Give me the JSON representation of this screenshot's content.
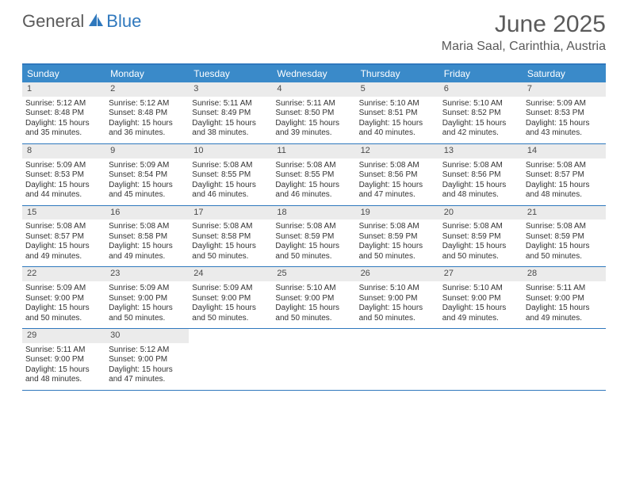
{
  "brand": {
    "part1": "General",
    "part2": "Blue"
  },
  "title": "June 2025",
  "location": "Maria Saal, Carinthia, Austria",
  "colors": {
    "header_bar": "#3a8ac9",
    "border": "#2f78bd",
    "daynum_bg": "#ebebeb",
    "text": "#333333",
    "title_text": "#5a5a5a"
  },
  "weekdays": [
    "Sunday",
    "Monday",
    "Tuesday",
    "Wednesday",
    "Thursday",
    "Friday",
    "Saturday"
  ],
  "weeks": [
    [
      {
        "n": "1",
        "sr": "5:12 AM",
        "ss": "8:48 PM",
        "dl": "15 hours and 35 minutes."
      },
      {
        "n": "2",
        "sr": "5:12 AM",
        "ss": "8:48 PM",
        "dl": "15 hours and 36 minutes."
      },
      {
        "n": "3",
        "sr": "5:11 AM",
        "ss": "8:49 PM",
        "dl": "15 hours and 38 minutes."
      },
      {
        "n": "4",
        "sr": "5:11 AM",
        "ss": "8:50 PM",
        "dl": "15 hours and 39 minutes."
      },
      {
        "n": "5",
        "sr": "5:10 AM",
        "ss": "8:51 PM",
        "dl": "15 hours and 40 minutes."
      },
      {
        "n": "6",
        "sr": "5:10 AM",
        "ss": "8:52 PM",
        "dl": "15 hours and 42 minutes."
      },
      {
        "n": "7",
        "sr": "5:09 AM",
        "ss": "8:53 PM",
        "dl": "15 hours and 43 minutes."
      }
    ],
    [
      {
        "n": "8",
        "sr": "5:09 AM",
        "ss": "8:53 PM",
        "dl": "15 hours and 44 minutes."
      },
      {
        "n": "9",
        "sr": "5:09 AM",
        "ss": "8:54 PM",
        "dl": "15 hours and 45 minutes."
      },
      {
        "n": "10",
        "sr": "5:08 AM",
        "ss": "8:55 PM",
        "dl": "15 hours and 46 minutes."
      },
      {
        "n": "11",
        "sr": "5:08 AM",
        "ss": "8:55 PM",
        "dl": "15 hours and 46 minutes."
      },
      {
        "n": "12",
        "sr": "5:08 AM",
        "ss": "8:56 PM",
        "dl": "15 hours and 47 minutes."
      },
      {
        "n": "13",
        "sr": "5:08 AM",
        "ss": "8:56 PM",
        "dl": "15 hours and 48 minutes."
      },
      {
        "n": "14",
        "sr": "5:08 AM",
        "ss": "8:57 PM",
        "dl": "15 hours and 48 minutes."
      }
    ],
    [
      {
        "n": "15",
        "sr": "5:08 AM",
        "ss": "8:57 PM",
        "dl": "15 hours and 49 minutes."
      },
      {
        "n": "16",
        "sr": "5:08 AM",
        "ss": "8:58 PM",
        "dl": "15 hours and 49 minutes."
      },
      {
        "n": "17",
        "sr": "5:08 AM",
        "ss": "8:58 PM",
        "dl": "15 hours and 50 minutes."
      },
      {
        "n": "18",
        "sr": "5:08 AM",
        "ss": "8:59 PM",
        "dl": "15 hours and 50 minutes."
      },
      {
        "n": "19",
        "sr": "5:08 AM",
        "ss": "8:59 PM",
        "dl": "15 hours and 50 minutes."
      },
      {
        "n": "20",
        "sr": "5:08 AM",
        "ss": "8:59 PM",
        "dl": "15 hours and 50 minutes."
      },
      {
        "n": "21",
        "sr": "5:08 AM",
        "ss": "8:59 PM",
        "dl": "15 hours and 50 minutes."
      }
    ],
    [
      {
        "n": "22",
        "sr": "5:09 AM",
        "ss": "9:00 PM",
        "dl": "15 hours and 50 minutes."
      },
      {
        "n": "23",
        "sr": "5:09 AM",
        "ss": "9:00 PM",
        "dl": "15 hours and 50 minutes."
      },
      {
        "n": "24",
        "sr": "5:09 AM",
        "ss": "9:00 PM",
        "dl": "15 hours and 50 minutes."
      },
      {
        "n": "25",
        "sr": "5:10 AM",
        "ss": "9:00 PM",
        "dl": "15 hours and 50 minutes."
      },
      {
        "n": "26",
        "sr": "5:10 AM",
        "ss": "9:00 PM",
        "dl": "15 hours and 50 minutes."
      },
      {
        "n": "27",
        "sr": "5:10 AM",
        "ss": "9:00 PM",
        "dl": "15 hours and 49 minutes."
      },
      {
        "n": "28",
        "sr": "5:11 AM",
        "ss": "9:00 PM",
        "dl": "15 hours and 49 minutes."
      }
    ],
    [
      {
        "n": "29",
        "sr": "5:11 AM",
        "ss": "9:00 PM",
        "dl": "15 hours and 48 minutes."
      },
      {
        "n": "30",
        "sr": "5:12 AM",
        "ss": "9:00 PM",
        "dl": "15 hours and 47 minutes."
      },
      null,
      null,
      null,
      null,
      null
    ]
  ],
  "labels": {
    "sunrise": "Sunrise:",
    "sunset": "Sunset:",
    "daylight": "Daylight:"
  }
}
